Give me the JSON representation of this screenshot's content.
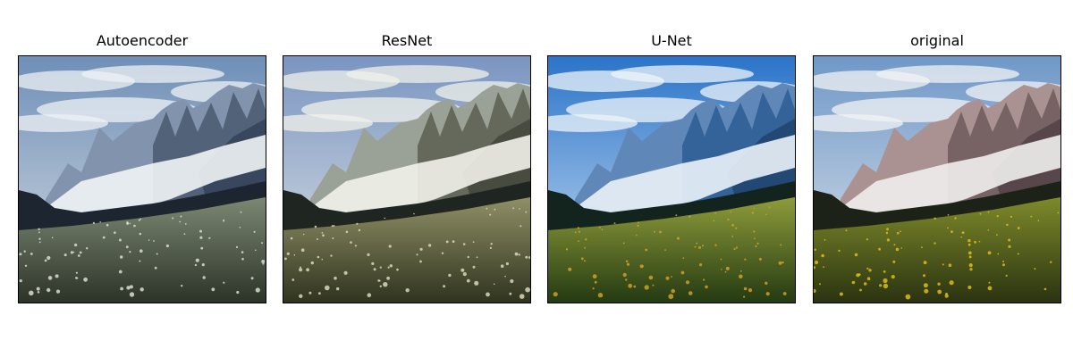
{
  "panels": [
    {
      "title": "Autoencoder",
      "tone": "cool-desaturated"
    },
    {
      "title": "ResNet",
      "tone": "muted-yellow"
    },
    {
      "title": "U-Net",
      "tone": "vivid-blue-green"
    },
    {
      "title": "original",
      "tone": "warm-natural"
    }
  ],
  "palettes": {
    "cool-desaturated": {
      "sky_top": "#6f8fb8",
      "sky_mid": "#d7dde3",
      "cloud": "#eef1f4",
      "rock_far": "#8294ad",
      "rock_near": "#4a5a70",
      "rock_shadow": "#2f3c52",
      "snow": "#f1f4f7",
      "ridge": "#1c2530",
      "meadow_top": "#7c8873",
      "meadow_bottom": "#2c3328",
      "flower": "#e3e6da"
    },
    "muted-yellow": {
      "sky_top": "#7a95c2",
      "sky_mid": "#dfe4e4",
      "cloud": "#f0f1ea",
      "rock_far": "#9aa196",
      "rock_near": "#5a5f52",
      "rock_shadow": "#3a3e35",
      "snow": "#f2f2ea",
      "ridge": "#1f2520",
      "meadow_top": "#8f9066",
      "meadow_bottom": "#30331f",
      "flower": "#e2e0c4"
    },
    "vivid-blue-green": {
      "sky_top": "#2b74c9",
      "sky_mid": "#cfe2f3",
      "cloud": "#edf4fa",
      "rock_far": "#5f87b8",
      "rock_near": "#2d5d93",
      "rock_shadow": "#1d3d63",
      "snow": "#eaf2f8",
      "ridge": "#13231e",
      "meadow_top": "#8e9c3a",
      "meadow_bottom": "#243a12",
      "flower": "#d8a42a"
    },
    "warm-natural": {
      "sky_top": "#6f98c8",
      "sky_mid": "#dfe5ea",
      "cloud": "#f1f3f4",
      "rock_far": "#a99291",
      "rock_near": "#6e5a5c",
      "rock_shadow": "#4a3c40",
      "snow": "#f1eeee",
      "ridge": "#1d2218",
      "meadow_top": "#7e8a2b",
      "meadow_bottom": "#2a3310",
      "flower": "#e8c21c"
    }
  }
}
